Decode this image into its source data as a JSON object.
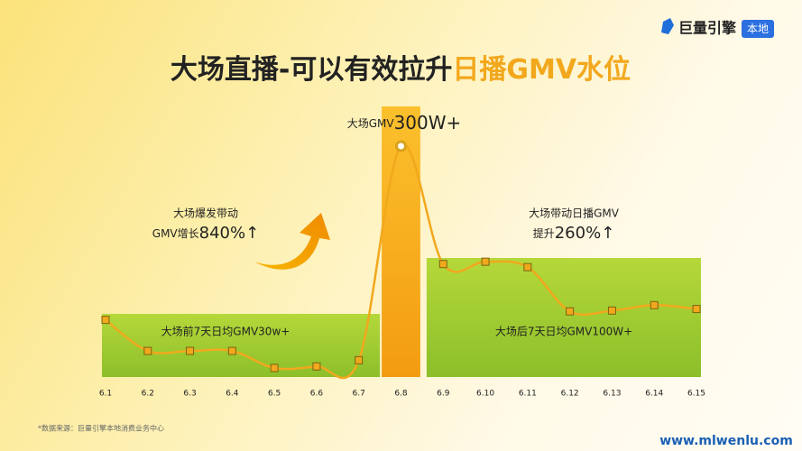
{
  "brand": {
    "name": "巨量引擎",
    "tag": "本地"
  },
  "chart_data": {
    "type": "line",
    "title": "大场直播-可以有效拉升",
    "title_highlight": "日播GMV水位",
    "categories": [
      "6.1",
      "6.2",
      "6.3",
      "6.4",
      "6.5",
      "6.6",
      "6.7",
      "6.8",
      "6.9",
      "6.10",
      "6.11",
      "6.12",
      "6.13",
      "6.14",
      "6.15"
    ],
    "series": [
      {
        "color": "#f2a81d",
        "values": [
          76,
          36,
          36,
          36,
          14,
          16,
          24,
          300,
          148,
          151,
          144,
          87,
          88,
          95,
          90
        ]
      }
    ],
    "ylim": [
      0,
      300
    ],
    "annotations": {
      "peak_label": "大场GMV",
      "peak_value": "300W+",
      "growth_label_1": "大场爆发带动",
      "growth_label_2": "GMV增长",
      "growth_value": "840%↑",
      "lift_label_1": "大场带动日播GMV",
      "lift_label_2": "提升",
      "lift_value": "260%↑",
      "before_label": "大场前7天日均GMV30w+",
      "after_label": "大场后7天日均GMV100W+"
    }
  },
  "source": "*数据来源：巨量引擎本地消费业务中心",
  "watermark": "www.mlwenlu.com"
}
